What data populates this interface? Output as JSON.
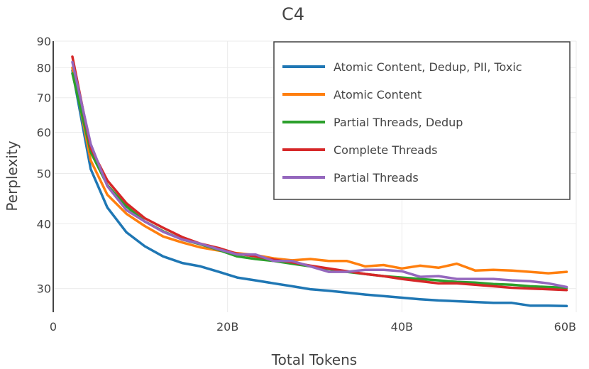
{
  "chart_data": {
    "type": "line",
    "title": "C4",
    "xlabel": "Total Tokens",
    "ylabel": "Perplexity",
    "x_scale": "linear",
    "y_scale": "log",
    "xlim": [
      0,
      60000000000
    ],
    "ylim": [
      27,
      90
    ],
    "x_ticks": [
      {
        "value": 0,
        "label": "0"
      },
      {
        "value": 20000000000,
        "label": "20B"
      },
      {
        "value": 40000000000,
        "label": "40B"
      },
      {
        "value": 60000000000,
        "label": "60B"
      }
    ],
    "y_ticks": [
      {
        "value": 30,
        "label": "30"
      },
      {
        "value": 40,
        "label": "40"
      },
      {
        "value": 50,
        "label": "50"
      },
      {
        "value": 60,
        "label": "60"
      },
      {
        "value": 70,
        "label": "70"
      },
      {
        "value": 80,
        "label": "80"
      },
      {
        "value": 90,
        "label": "90"
      }
    ],
    "grid": true,
    "legend_position": "top-right",
    "x": [
      2200000000,
      4300000000,
      6200000000,
      8400000000,
      10500000000,
      12600000000,
      14800000000,
      16900000000,
      19000000000,
      21100000000,
      23200000000,
      25300000000,
      27400000000,
      29500000000,
      31600000000,
      33700000000,
      35800000000,
      37900000000,
      40000000000,
      42100000000,
      44200000000,
      46300000000,
      48400000000,
      50500000000,
      52600000000,
      54700000000,
      56800000000,
      58900000000
    ],
    "series": [
      {
        "name": "Atomic Content, Dedup, PII, Toxic",
        "color": "#1f77b4",
        "values": [
          79,
          51,
          43,
          38.5,
          36.2,
          34.6,
          33.6,
          33.1,
          32.3,
          31.5,
          31.1,
          30.7,
          30.3,
          29.9,
          29.7,
          29.45,
          29.2,
          29.0,
          28.8,
          28.6,
          28.45,
          28.35,
          28.25,
          28.15,
          28.15,
          27.8,
          27.8,
          27.75
        ]
      },
      {
        "name": "Atomic Content",
        "color": "#ff7f0e",
        "values": [
          80,
          53,
          45.5,
          41.8,
          39.6,
          37.8,
          36.8,
          36.0,
          35.5,
          35.1,
          34.8,
          34.3,
          34.0,
          34.2,
          33.9,
          33.9,
          33.1,
          33.3,
          32.8,
          33.2,
          32.9,
          33.5,
          32.5,
          32.6,
          32.5,
          32.3,
          32.1,
          32.3
        ]
      },
      {
        "name": "Partial Threads, Dedup",
        "color": "#2ca02c",
        "values": [
          78,
          55,
          47.5,
          43.2,
          40.4,
          38.7,
          37.3,
          36.5,
          35.6,
          34.6,
          34.2,
          33.9,
          33.5,
          33.1,
          32.7,
          32.3,
          32.0,
          31.7,
          31.5,
          31.3,
          31.1,
          30.9,
          30.8,
          30.6,
          30.5,
          30.3,
          30.2,
          30.1
        ]
      },
      {
        "name": "Complete Threads",
        "color": "#d62728",
        "values": [
          84,
          56,
          48.5,
          43.8,
          41.0,
          39.3,
          37.7,
          36.6,
          35.9,
          35.0,
          34.6,
          34.1,
          33.7,
          33.2,
          32.8,
          32.4,
          32.0,
          31.7,
          31.3,
          31.0,
          30.7,
          30.7,
          30.5,
          30.3,
          30.1,
          30.0,
          29.9,
          29.8
        ]
      },
      {
        "name": "Partial Threads",
        "color": "#9467bd",
        "values": [
          82,
          57,
          47.3,
          42.5,
          40.4,
          38.6,
          37.3,
          36.6,
          35.7,
          34.9,
          34.9,
          33.9,
          33.9,
          33.1,
          32.3,
          32.3,
          32.6,
          32.6,
          32.4,
          31.6,
          31.7,
          31.3,
          31.3,
          31.3,
          31.1,
          31.0,
          30.7,
          30.2
        ]
      }
    ]
  }
}
